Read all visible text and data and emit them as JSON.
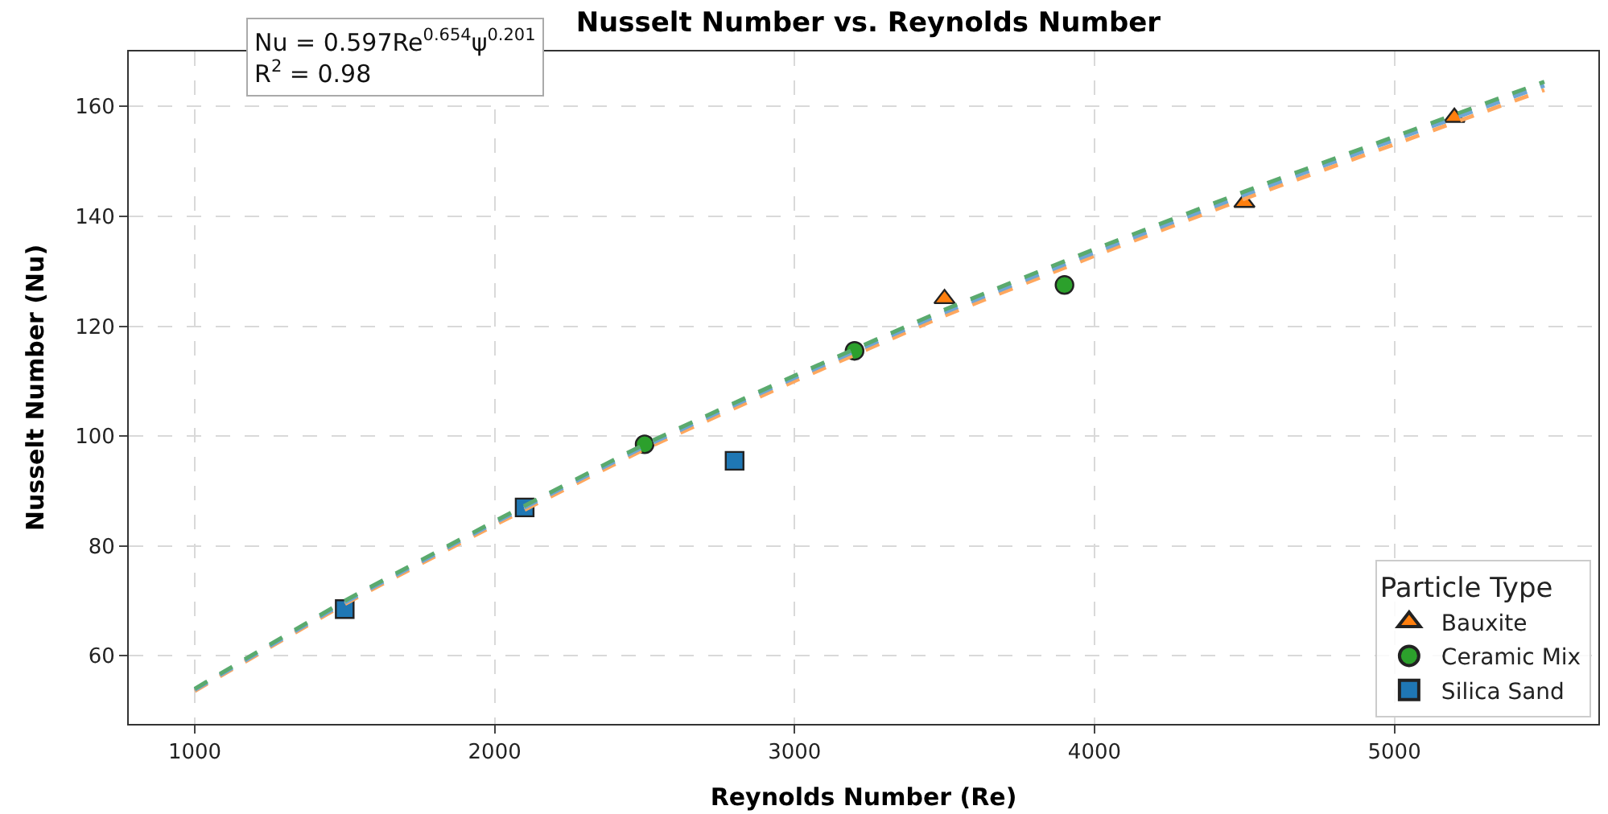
{
  "chart_data": {
    "type": "scatter",
    "title": "Nusselt Number vs. Reynolds Number",
    "xlabel": "Reynolds Number (Re)",
    "ylabel": "Nusselt Number (Nu)",
    "legend_title": "Particle Type",
    "annotations": [
      "Nu = 0.597Re$^{0.654}$ψ$^{0.201}$\nR$^{2}$ = 0.98"
    ],
    "xlim": [
      780,
      5680
    ],
    "xticks": [
      1000,
      2000,
      3000,
      4000,
      5000
    ],
    "ylim": [
      47.6,
      170
    ],
    "yticks": [
      60,
      80,
      100,
      120,
      140,
      160
    ],
    "grid": true,
    "legend": "bottom right",
    "series": [
      {
        "name": "Bauxite",
        "color": "#ff7f0e",
        "marker": "triangle",
        "x": [
          3500,
          4500,
          5200
        ],
        "values": [
          125,
          142.5,
          158
        ]
      },
      {
        "name": "Ceramic Mix",
        "color": "#2ca02c",
        "marker": "circle",
        "x": [
          2500,
          3200,
          3900
        ],
        "values": [
          98.5,
          115.5,
          127.5
        ]
      },
      {
        "name": "Silica Sand",
        "color": "#1f77b4",
        "marker": "square",
        "x": [
          1500,
          2100,
          2800
        ],
        "values": [
          68.5,
          87,
          95.5
        ]
      },
      {
        "type": "line",
        "color": "#ffa75e",
        "line_style": "dashed",
        "x": [
          1000,
          1500,
          2000,
          2500,
          3000,
          3500,
          4000,
          4500,
          5000,
          5500
        ],
        "values": [
          53.6,
          69.4,
          83.8,
          97.6,
          110,
          121.9,
          132.8,
          143.2,
          153.1,
          163
        ]
      },
      {
        "type": "line",
        "color": "#6fa6d4",
        "line_style": "dashed",
        "x": [
          1000,
          1500,
          2000,
          2500,
          3000,
          3500,
          4000,
          4500,
          5000,
          5500
        ],
        "values": [
          53.8,
          69.7,
          84.2,
          98.1,
          110.6,
          122.5,
          133.4,
          143.9,
          153.9,
          163.8
        ]
      },
      {
        "type": "line",
        "color": "#5aaa6e",
        "line_style": "dashed",
        "x": [
          1000,
          1500,
          2000,
          2500,
          3000,
          3500,
          4000,
          4500,
          5000,
          5500
        ],
        "values": [
          54,
          70,
          84.5,
          98.5,
          111,
          123,
          134,
          144.5,
          154.5,
          164.5
        ]
      }
    ]
  }
}
